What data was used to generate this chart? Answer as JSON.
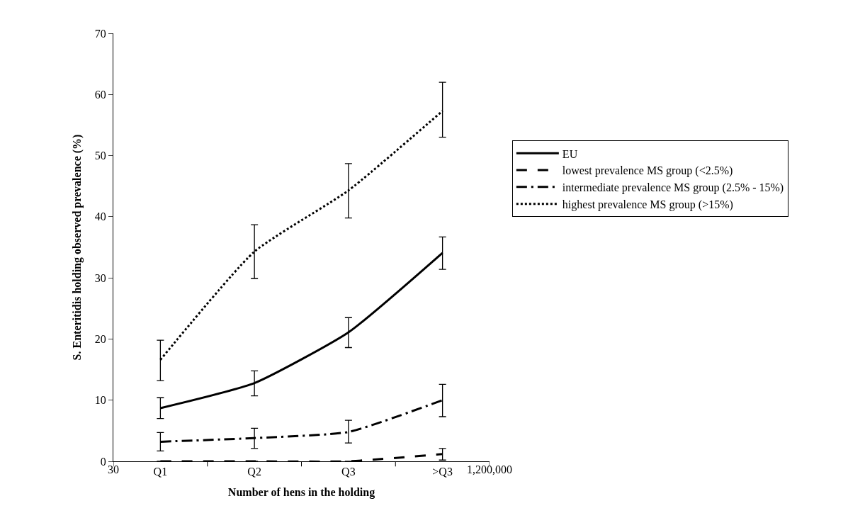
{
  "chart_data": {
    "type": "line",
    "xlabel": "Number of hens in the holding",
    "ylabel": "S. Enteritidis holding observed prevalence (%)",
    "categories": [
      "Q1",
      "Q2",
      "Q3",
      ">Q3"
    ],
    "annotations": [
      "30",
      "1,200,000"
    ],
    "ylim": [
      0,
      70
    ],
    "yticks": [
      0,
      10,
      20,
      30,
      40,
      50,
      60,
      70
    ],
    "legend": "right",
    "marker": "none",
    "series": [
      {
        "name": "EU",
        "color": "#000000",
        "line_style": "solid",
        "values": [
          8.7,
          12.8,
          21.1,
          34.1
        ],
        "errors": [
          [
            7.0,
            10.4
          ],
          [
            10.7,
            14.8
          ],
          [
            18.6,
            23.5
          ],
          [
            31.4,
            36.7
          ]
        ]
      },
      {
        "name": "lowest prevalence MS group (<2.5%)",
        "color": "#000000",
        "line_style": "dashed",
        "values": [
          0,
          0,
          0,
          1.2
        ],
        "errors": [
          null,
          null,
          null,
          [
            0.2,
            2.1
          ]
        ]
      },
      {
        "name": "intermediate prevalence MS group (2.5% - 15%)",
        "color": "#000000",
        "line_style": "dashdot",
        "values": [
          3.2,
          3.8,
          4.8,
          10.0
        ],
        "errors": [
          [
            1.7,
            4.7
          ],
          [
            2.1,
            5.4
          ],
          [
            3.0,
            6.7
          ],
          [
            7.3,
            12.6
          ]
        ]
      },
      {
        "name": "highest prevalence MS group (>15%)",
        "color": "#000000",
        "line_style": "dotted",
        "values": [
          16.6,
          34.3,
          44.3,
          57.3
        ],
        "errors": [
          [
            13.2,
            19.8
          ],
          [
            29.9,
            38.7
          ],
          [
            39.8,
            48.7
          ],
          [
            53.0,
            62.0
          ]
        ]
      }
    ]
  }
}
